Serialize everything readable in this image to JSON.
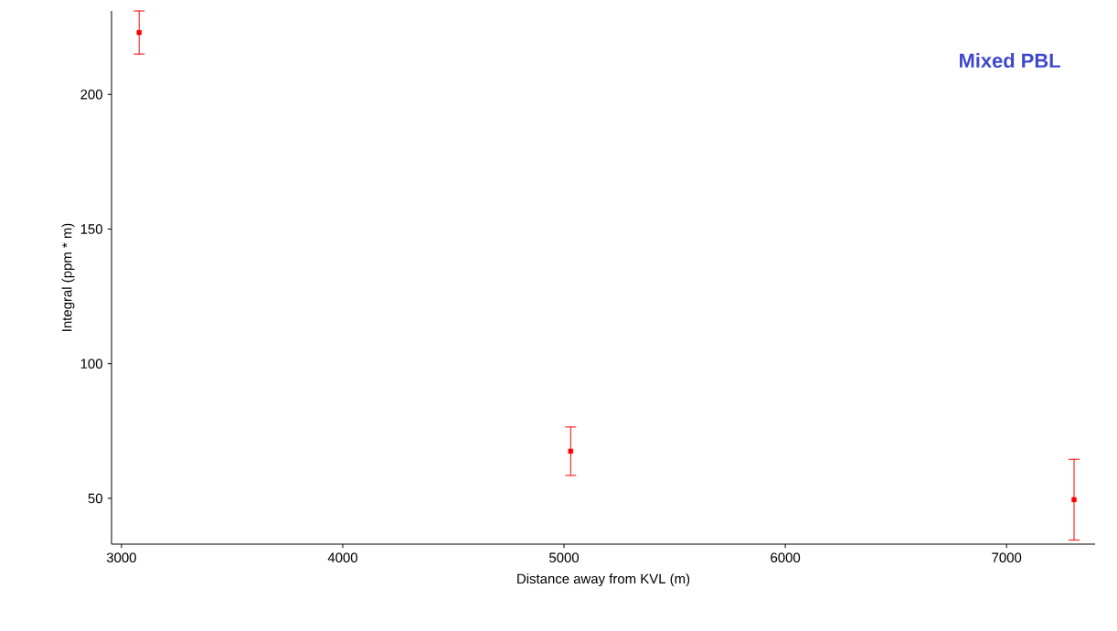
{
  "chart_data": {
    "type": "scatter",
    "xlabel": "Distance away from KVL (m)",
    "ylabel": "Integral (ppm * m)",
    "annotations": [
      "Mixed PBL"
    ],
    "x": [
      3080,
      5030,
      7305
    ],
    "values": [
      223,
      67.5,
      49.5
    ],
    "errors": [
      8,
      9,
      15
    ],
    "color": "#ff0000",
    "marker": "square",
    "xlim": [
      2955,
      7400
    ],
    "ylim": [
      33,
      231
    ],
    "xticks": [
      3000,
      4000,
      5000,
      6000,
      7000
    ],
    "yticks": [
      50,
      100,
      150,
      200
    ]
  }
}
